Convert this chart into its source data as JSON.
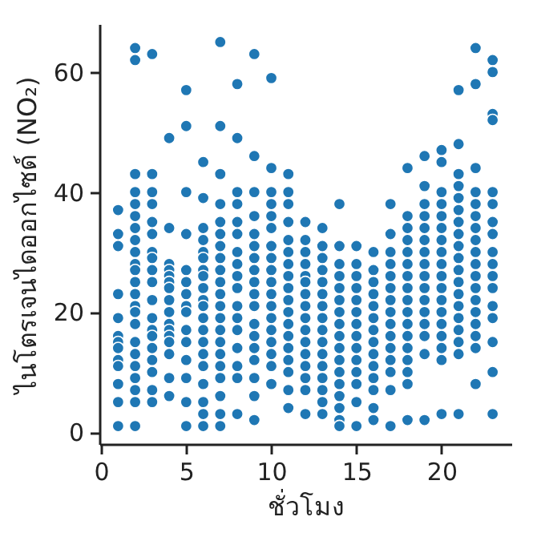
{
  "chart_data": {
    "type": "scatter",
    "xlabel": "ชั่วโมง",
    "ylabel": "ไนโตรเจนไดออกไซด์ (NO₂)",
    "xlim": [
      -0.1,
      24.1
    ],
    "ylim": [
      -2,
      68
    ],
    "xticks": [
      0,
      5,
      10,
      15,
      20
    ],
    "yticks": [
      0,
      20,
      40,
      60
    ],
    "grid": false,
    "marker": "circle",
    "series": [
      {
        "color": "#1f77b4",
        "x": [
          1,
          1,
          1,
          1,
          1,
          1,
          1,
          1,
          1,
          1,
          1,
          1,
          1
        ],
        "values": [
          37,
          33,
          31,
          23,
          19,
          16,
          15,
          14,
          12,
          11,
          8,
          5,
          1
        ]
      },
      {
        "color": "#1f77b4",
        "x": [
          2,
          2,
          2,
          2,
          2,
          2,
          2,
          2,
          2,
          2,
          2,
          2,
          2,
          2,
          2,
          2,
          2,
          2,
          2,
          2,
          2,
          2,
          2
        ],
        "values": [
          64,
          62,
          43,
          40,
          38,
          36,
          34,
          32,
          30,
          28,
          27,
          25,
          23,
          21,
          20,
          18,
          15,
          13,
          11,
          9,
          7,
          5,
          1
        ]
      },
      {
        "color": "#1f77b4",
        "x": [
          3,
          3,
          3,
          3,
          3,
          3,
          3,
          3,
          3,
          3,
          3,
          3,
          3,
          3,
          3,
          3,
          3,
          3,
          3
        ],
        "values": [
          63,
          43,
          40,
          38,
          35,
          33,
          30,
          29,
          27,
          25,
          22,
          19,
          17,
          16,
          14,
          12,
          10,
          7,
          5
        ]
      },
      {
        "color": "#1f77b4",
        "x": [
          4,
          4,
          4,
          4,
          4,
          4,
          4,
          4,
          4,
          4,
          4,
          4,
          4,
          4,
          4,
          4
        ],
        "values": [
          49,
          34,
          28,
          27,
          26,
          25,
          24,
          22,
          20,
          18,
          17,
          16,
          15,
          13,
          9,
          6
        ]
      },
      {
        "color": "#1f77b4",
        "x": [
          5,
          5,
          5,
          5,
          5,
          5,
          5,
          5,
          5,
          5,
          5,
          5,
          5,
          5,
          5
        ],
        "values": [
          57,
          51,
          40,
          33,
          27,
          25,
          23,
          21,
          20,
          17,
          15,
          12,
          9,
          5,
          1
        ]
      },
      {
        "color": "#1f77b4",
        "x": [
          6,
          6,
          6,
          6,
          6,
          6,
          6,
          6,
          6,
          6,
          6,
          6,
          6,
          6,
          6,
          6,
          6,
          6,
          6,
          6
        ],
        "values": [
          45,
          39,
          34,
          32,
          30,
          29,
          27,
          26,
          24,
          22,
          21,
          19,
          17,
          15,
          13,
          11,
          8,
          5,
          3,
          1
        ]
      },
      {
        "color": "#1f77b4",
        "x": [
          7,
          7,
          7,
          7,
          7,
          7,
          7,
          7,
          7,
          7,
          7,
          7,
          7,
          7,
          7,
          7,
          7,
          7,
          7,
          7,
          7
        ],
        "values": [
          65,
          51,
          43,
          38,
          35,
          33,
          31,
          29,
          27,
          25,
          23,
          21,
          19,
          17,
          15,
          13,
          11,
          9,
          6,
          3,
          1
        ]
      },
      {
        "color": "#1f77b4",
        "x": [
          8,
          8,
          8,
          8,
          8,
          8,
          8,
          8,
          8,
          8,
          8,
          8,
          8,
          8,
          8,
          8,
          8
        ],
        "values": [
          58,
          49,
          40,
          38,
          35,
          33,
          30,
          28,
          26,
          24,
          21,
          19,
          17,
          14,
          11,
          9,
          3
        ]
      },
      {
        "color": "#1f77b4",
        "x": [
          9,
          9,
          9,
          9,
          9,
          9,
          9,
          9,
          9,
          9,
          9,
          9,
          9,
          9,
          9,
          9,
          9,
          9
        ],
        "values": [
          63,
          46,
          40,
          36,
          33,
          31,
          29,
          27,
          25,
          23,
          21,
          18,
          16,
          14,
          12,
          9,
          6,
          2
        ]
      },
      {
        "color": "#1f77b4",
        "x": [
          10,
          10,
          10,
          10,
          10,
          10,
          10,
          10,
          10,
          10,
          10,
          10,
          10,
          10,
          10,
          10,
          10,
          10
        ],
        "values": [
          59,
          44,
          40,
          38,
          36,
          34,
          31,
          29,
          27,
          25,
          23,
          21,
          19,
          17,
          15,
          13,
          11,
          8
        ]
      },
      {
        "color": "#1f77b4",
        "x": [
          11,
          11,
          11,
          11,
          11,
          11,
          11,
          11,
          11,
          11,
          11,
          11,
          11,
          11,
          11,
          11,
          11,
          11
        ],
        "values": [
          43,
          40,
          38,
          35,
          32,
          30,
          28,
          26,
          24,
          22,
          20,
          18,
          16,
          14,
          12,
          10,
          7,
          4
        ]
      },
      {
        "color": "#1f77b4",
        "x": [
          12,
          12,
          12,
          12,
          12,
          12,
          12,
          12,
          12,
          12,
          12,
          12,
          12,
          12,
          12,
          12
        ],
        "values": [
          35,
          32,
          30,
          28,
          26,
          25,
          23,
          21,
          19,
          17,
          15,
          13,
          11,
          9,
          7,
          3
        ]
      },
      {
        "color": "#1f77b4",
        "x": [
          13,
          13,
          13,
          13,
          13,
          13,
          13,
          13,
          13,
          13,
          13,
          13,
          13,
          13,
          13,
          13
        ],
        "values": [
          34,
          31,
          29,
          27,
          25,
          23,
          21,
          19,
          17,
          15,
          13,
          11,
          9,
          7,
          5,
          3
        ]
      },
      {
        "color": "#1f77b4",
        "x": [
          14,
          14,
          14,
          14,
          14,
          14,
          14,
          14,
          14,
          14,
          14,
          14,
          14,
          14,
          14,
          14,
          14
        ],
        "values": [
          38,
          31,
          28,
          26,
          24,
          22,
          20,
          18,
          16,
          14,
          12,
          10,
          8,
          6,
          4,
          2,
          1
        ]
      },
      {
        "color": "#1f77b4",
        "x": [
          15,
          15,
          15,
          15,
          15,
          15,
          15,
          15,
          15,
          15,
          15,
          15,
          15,
          15
        ],
        "values": [
          31,
          28,
          26,
          24,
          22,
          20,
          18,
          16,
          14,
          12,
          10,
          8,
          5,
          1
        ]
      },
      {
        "color": "#1f77b4",
        "x": [
          16,
          16,
          16,
          16,
          16,
          16,
          16,
          16,
          16,
          16,
          16,
          16,
          16,
          16
        ],
        "values": [
          30,
          27,
          25,
          23,
          21,
          19,
          17,
          15,
          13,
          11,
          9,
          7,
          4,
          2
        ]
      },
      {
        "color": "#1f77b4",
        "x": [
          17,
          17,
          17,
          17,
          17,
          17,
          17,
          17,
          17,
          17,
          17,
          17,
          17,
          17,
          17
        ],
        "values": [
          38,
          33,
          30,
          28,
          26,
          24,
          22,
          20,
          18,
          16,
          14,
          12,
          10,
          7,
          1
        ]
      },
      {
        "color": "#1f77b4",
        "x": [
          18,
          18,
          18,
          18,
          18,
          18,
          18,
          18,
          18,
          18,
          18,
          18,
          18,
          18,
          18,
          18,
          18
        ],
        "values": [
          44,
          36,
          34,
          32,
          30,
          28,
          26,
          24,
          22,
          20,
          18,
          16,
          14,
          12,
          10,
          8,
          2
        ]
      },
      {
        "color": "#1f77b4",
        "x": [
          19,
          19,
          19,
          19,
          19,
          19,
          19,
          19,
          19,
          19,
          19,
          19,
          19,
          19,
          19,
          19
        ],
        "values": [
          46,
          41,
          38,
          36,
          34,
          32,
          30,
          28,
          26,
          24,
          22,
          20,
          18,
          16,
          13,
          2
        ]
      },
      {
        "color": "#1f77b4",
        "x": [
          20,
          20,
          20,
          20,
          20,
          20,
          20,
          20,
          20,
          20,
          20,
          20,
          20,
          20,
          20,
          20,
          20,
          20
        ],
        "values": [
          47,
          45,
          40,
          38,
          36,
          34,
          32,
          30,
          28,
          26,
          24,
          22,
          20,
          18,
          16,
          14,
          12,
          3
        ]
      },
      {
        "color": "#1f77b4",
        "x": [
          21,
          21,
          21,
          21,
          21,
          21,
          21,
          21,
          21,
          21,
          21,
          21,
          21,
          21,
          21,
          21,
          21,
          21,
          21
        ],
        "values": [
          57,
          48,
          43,
          41,
          39,
          37,
          35,
          33,
          31,
          29,
          27,
          25,
          23,
          21,
          19,
          17,
          15,
          13,
          3
        ]
      },
      {
        "color": "#1f77b4",
        "x": [
          22,
          22,
          22,
          22,
          22,
          22,
          22,
          22,
          22,
          22,
          22,
          22,
          22,
          22,
          22,
          22,
          22,
          22
        ],
        "values": [
          64,
          58,
          44,
          40,
          38,
          36,
          34,
          32,
          30,
          28,
          26,
          24,
          22,
          20,
          18,
          16,
          14,
          8
        ]
      },
      {
        "color": "#1f77b4",
        "x": [
          23,
          23,
          23,
          23,
          23,
          23,
          23,
          23,
          23,
          23,
          23,
          23,
          23,
          23,
          23,
          23,
          23
        ],
        "values": [
          62,
          60,
          53,
          52,
          40,
          38,
          35,
          33,
          30,
          28,
          26,
          24,
          21,
          19,
          15,
          10,
          3
        ]
      }
    ]
  }
}
